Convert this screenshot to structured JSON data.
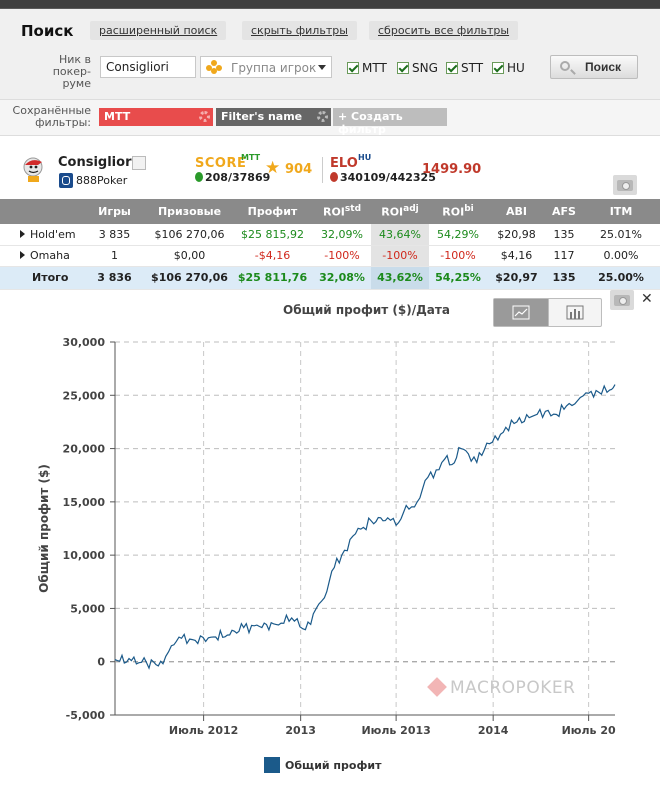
{
  "search": {
    "title": "Поиск",
    "links": [
      "расширенный поиск",
      "скрыть фильтры",
      "сбросить все фильтры"
    ],
    "nick_label": "Ник в покер-руме",
    "nick_value": "Consigliori",
    "group_placeholder": "Группа игрок",
    "checkboxes": [
      "MTT",
      "SNG",
      "STT",
      "HU"
    ],
    "search_button": "Поиск"
  },
  "filters": {
    "label": "Сохранённые фильтры:",
    "chip_mtt": "MTT",
    "chip_name": "Filter's name",
    "chip_create": "+ Создать фильтр"
  },
  "player": {
    "name": "Consigliori",
    "room": "888Poker",
    "score_label": "SCORE",
    "score_sup": "MTT",
    "score_rank": "208/37869",
    "score_value": "904",
    "elo_label": "ELO",
    "elo_sup": "HU",
    "elo_rank": "340109/442325",
    "elo_value": "1499.90"
  },
  "table": {
    "headers": [
      "",
      "Игры",
      "Призовые",
      "Профит",
      "ROI",
      "ROI",
      "ROI",
      "ABI",
      "AFS",
      "ITM"
    ],
    "header_sups": [
      "",
      "",
      "",
      "",
      "std",
      "adj",
      "bi",
      "",
      "",
      ""
    ],
    "rows": [
      [
        "Hold'em",
        "3 835",
        "$106 270,06",
        "$25 815,92",
        "32,09%",
        "43,64%",
        "54,29%",
        "$20,98",
        "135",
        "25.01%"
      ],
      [
        "Omaha",
        "1",
        "$0,00",
        "-$4,16",
        "-100%",
        "-100%",
        "-100%",
        "$4,16",
        "117",
        "0.00%"
      ]
    ],
    "total": [
      "Итого",
      "3 836",
      "$106 270,06",
      "$25 811,76",
      "32,08%",
      "43,62%",
      "54,25%",
      "$20,97",
      "135",
      "25.00%"
    ]
  },
  "chart_data": {
    "type": "line",
    "title": "Общий профит ($)/Дата",
    "ylabel": "Общий профит ($)",
    "xlabel": "",
    "ylim": [
      -5000,
      30000
    ],
    "yticks": [
      -5000,
      0,
      5000,
      10000,
      15000,
      20000,
      25000,
      30000
    ],
    "ytick_labels": [
      "-5,000",
      "0",
      "5,000",
      "10,000",
      "15,000",
      "20,000",
      "25,000",
      "30,000"
    ],
    "xlim": [
      "2012-01-15",
      "2014-08-20"
    ],
    "xticks": [
      "2012-01-01",
      "2012-07-01",
      "2013-01-01",
      "2013-07-01",
      "2014-01-01",
      "2014-07-01"
    ],
    "xtick_labels": [
      "",
      "Июль 2012",
      "2013",
      "Июль 2013",
      "2014",
      "Июль 20"
    ],
    "grid": true,
    "legend": "bottom",
    "series": [
      {
        "name": "Общий профит",
        "color": "#1b5a8a",
        "x": [
          "2012-01-15",
          "2012-02-15",
          "2012-03-15",
          "2012-04-15",
          "2012-05-01",
          "2012-05-20",
          "2012-06-15",
          "2012-07-15",
          "2012-08-15",
          "2012-09-15",
          "2012-10-15",
          "2012-11-15",
          "2012-12-15",
          "2013-01-10",
          "2013-01-25",
          "2013-02-15",
          "2013-03-01",
          "2013-03-20",
          "2013-04-15",
          "2013-05-15",
          "2013-06-15",
          "2013-07-01",
          "2013-07-15",
          "2013-08-10",
          "2013-08-25",
          "2013-09-15",
          "2013-10-01",
          "2013-10-15",
          "2013-11-01",
          "2013-11-15",
          "2013-12-01",
          "2013-12-20",
          "2014-01-10",
          "2014-01-25",
          "2014-02-15",
          "2014-03-15",
          "2014-04-10",
          "2014-05-01",
          "2014-05-20",
          "2014-06-10",
          "2014-07-01",
          "2014-07-20",
          "2014-08-10",
          "2014-08-20"
        ],
        "y": [
          200,
          100,
          -100,
          -200,
          1500,
          2200,
          2000,
          2300,
          2500,
          3200,
          3300,
          3500,
          4100,
          3000,
          4500,
          6000,
          8500,
          10000,
          12000,
          13200,
          13500,
          12800,
          14000,
          15000,
          17000,
          18000,
          19000,
          18500,
          20000,
          19500,
          18700,
          20500,
          20800,
          22000,
          22500,
          23000,
          23500,
          23200,
          24000,
          24500,
          25200,
          25300,
          25500,
          26000
        ]
      }
    ]
  },
  "legend_label": "Общий профит",
  "watermark": "MACROPOKER",
  "colors": {
    "accent": "#f0a81c",
    "elo": "#c0392b",
    "positive": "#1c8a1c",
    "negative": "#d0281c",
    "line": "#1b5a8a"
  }
}
